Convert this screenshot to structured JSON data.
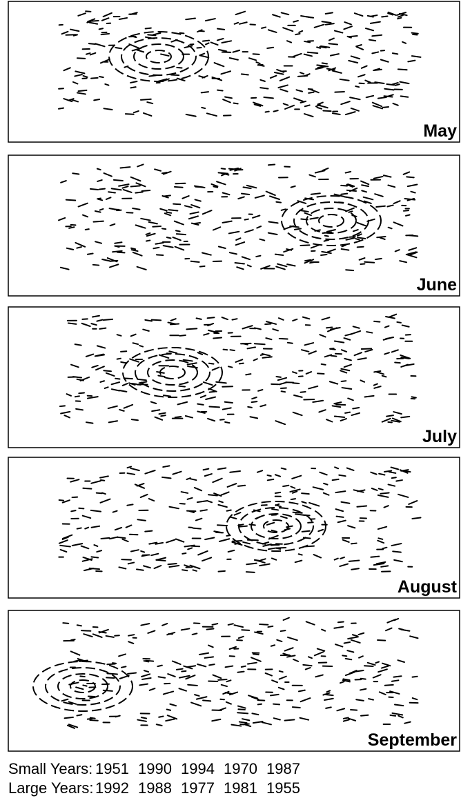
{
  "panels": [
    {
      "label": "May"
    },
    {
      "label": "June"
    },
    {
      "label": "July"
    },
    {
      "label": "August"
    },
    {
      "label": "September"
    }
  ],
  "footer": [
    {
      "label": "Small Years:",
      "years": [
        1951,
        1990,
        1994,
        1970,
        1987
      ]
    },
    {
      "label": "Large Years:",
      "years": [
        1992,
        1988,
        1977,
        1981,
        1955
      ]
    }
  ]
}
